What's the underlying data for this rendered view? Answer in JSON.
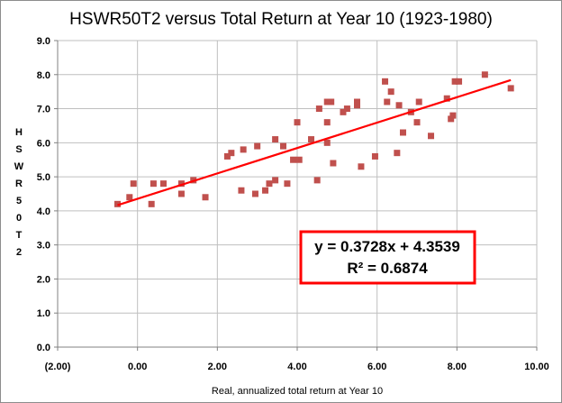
{
  "chart_data": {
    "type": "scatter",
    "title": "HSWR50T2 versus Total Return at Year 10 (1923-1980)",
    "xlabel": "Real, annualized total return at Year 10",
    "ylabel": "HSWR50T2",
    "xlim": [
      -2,
      10
    ],
    "ylim": [
      0,
      9
    ],
    "x_ticks": [
      {
        "value": -2,
        "label": "(2.00)",
        "negative": true
      },
      {
        "value": 0,
        "label": "0.00"
      },
      {
        "value": 2,
        "label": "2.00"
      },
      {
        "value": 4,
        "label": "4.00"
      },
      {
        "value": 6,
        "label": "6.00"
      },
      {
        "value": 8,
        "label": "8.00"
      },
      {
        "value": 10,
        "label": "10.00"
      }
    ],
    "y_ticks": [
      {
        "value": 0,
        "label": "0.0"
      },
      {
        "value": 1,
        "label": "1.0"
      },
      {
        "value": 2,
        "label": "2.0"
      },
      {
        "value": 3,
        "label": "3.0"
      },
      {
        "value": 4,
        "label": "4.0"
      },
      {
        "value": 5,
        "label": "5.0"
      },
      {
        "value": 6,
        "label": "6.0"
      },
      {
        "value": 7,
        "label": "7.0"
      },
      {
        "value": 8,
        "label": "8.0"
      },
      {
        "value": 9,
        "label": "9.0"
      }
    ],
    "grid": true,
    "points": [
      {
        "x": -0.5,
        "y": 4.2
      },
      {
        "x": -0.2,
        "y": 4.4
      },
      {
        "x": -0.1,
        "y": 4.8
      },
      {
        "x": 0.35,
        "y": 4.2
      },
      {
        "x": 0.4,
        "y": 4.8
      },
      {
        "x": 0.65,
        "y": 4.8
      },
      {
        "x": 1.1,
        "y": 4.5
      },
      {
        "x": 1.1,
        "y": 4.8
      },
      {
        "x": 1.4,
        "y": 4.9
      },
      {
        "x": 1.7,
        "y": 4.4
      },
      {
        "x": 2.25,
        "y": 5.6
      },
      {
        "x": 2.35,
        "y": 5.7
      },
      {
        "x": 2.6,
        "y": 4.6
      },
      {
        "x": 2.65,
        "y": 5.8
      },
      {
        "x": 2.95,
        "y": 4.5
      },
      {
        "x": 3.0,
        "y": 5.9
      },
      {
        "x": 3.2,
        "y": 4.6
      },
      {
        "x": 3.3,
        "y": 4.8
      },
      {
        "x": 3.45,
        "y": 4.9
      },
      {
        "x": 3.45,
        "y": 6.1
      },
      {
        "x": 3.65,
        "y": 5.9
      },
      {
        "x": 3.75,
        "y": 4.8
      },
      {
        "x": 3.9,
        "y": 5.5
      },
      {
        "x": 4.0,
        "y": 6.6
      },
      {
        "x": 4.05,
        "y": 5.5
      },
      {
        "x": 4.35,
        "y": 6.1
      },
      {
        "x": 4.5,
        "y": 4.9
      },
      {
        "x": 4.55,
        "y": 7.0
      },
      {
        "x": 4.75,
        "y": 6.0
      },
      {
        "x": 4.75,
        "y": 6.6
      },
      {
        "x": 4.75,
        "y": 7.2
      },
      {
        "x": 4.85,
        "y": 7.2
      },
      {
        "x": 4.9,
        "y": 5.4
      },
      {
        "x": 5.15,
        "y": 6.9
      },
      {
        "x": 5.25,
        "y": 7.0
      },
      {
        "x": 5.5,
        "y": 7.2
      },
      {
        "x": 5.5,
        "y": 7.1
      },
      {
        "x": 5.6,
        "y": 5.3
      },
      {
        "x": 5.95,
        "y": 5.6
      },
      {
        "x": 6.2,
        "y": 7.8
      },
      {
        "x": 6.25,
        "y": 7.2
      },
      {
        "x": 6.35,
        "y": 7.5
      },
      {
        "x": 6.5,
        "y": 5.7
      },
      {
        "x": 6.55,
        "y": 7.1
      },
      {
        "x": 6.65,
        "y": 6.3
      },
      {
        "x": 6.85,
        "y": 6.9
      },
      {
        "x": 7.0,
        "y": 6.6
      },
      {
        "x": 7.05,
        "y": 7.2
      },
      {
        "x": 7.35,
        "y": 6.2
      },
      {
        "x": 7.75,
        "y": 7.3
      },
      {
        "x": 7.85,
        "y": 6.7
      },
      {
        "x": 7.9,
        "y": 6.8
      },
      {
        "x": 7.95,
        "y": 7.8
      },
      {
        "x": 8.05,
        "y": 7.8
      },
      {
        "x": 8.7,
        "y": 8.0
      },
      {
        "x": 9.35,
        "y": 7.6
      }
    ],
    "trendline": {
      "slope": 0.3728,
      "intercept": 4.3539,
      "x_from": -0.5,
      "x_to": 9.35
    },
    "annotation": {
      "line1": "y = 0.3728x + 4.3539",
      "line2": "R² = 0.6874"
    },
    "colors": {
      "marker": "#c0504d",
      "trendline": "#ff0000",
      "box_border": "#ff0000",
      "negative_tick": "#c00000",
      "grid": "#bfbfbf"
    }
  }
}
